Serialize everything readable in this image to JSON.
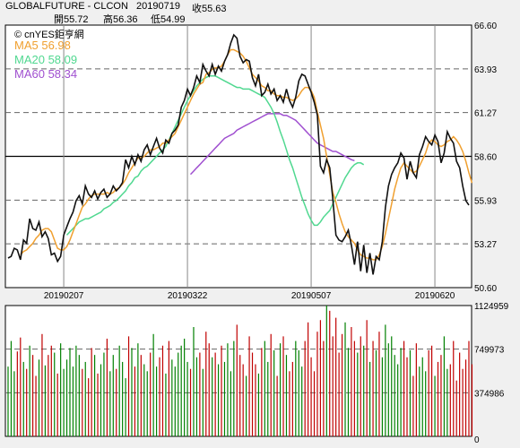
{
  "header": {
    "symbol": "GLOBALFUTURE - CLCON",
    "date": "20190719",
    "close_label": "收55.63",
    "open_label": "開55.72",
    "high_label": "高56.36",
    "low_label": "低54.99",
    "watermark": "© cnYES鉅亨網"
  },
  "ma_legend": [
    {
      "key": "ma5",
      "label": "MA5 56.98",
      "color": "#f0a030"
    },
    {
      "key": "ma20",
      "label": "MA20 58.09",
      "color": "#50d890"
    },
    {
      "key": "ma60",
      "label": "MA60 58.34",
      "color": "#a050d0"
    }
  ],
  "chart_data": [
    {
      "type": "line",
      "ylim": [
        50.6,
        66.6
      ],
      "yticks": [
        66.6,
        63.93,
        61.27,
        58.6,
        55.93,
        53.27,
        50.6
      ],
      "ytick_labels": [
        "66.60",
        "63.93",
        "61.27",
        "58.60",
        "55.93",
        "53.27",
        "50.60"
      ],
      "xticks": [
        18,
        58,
        98,
        138
      ],
      "xtick_labels": [
        "20190207",
        "20190322",
        "20190507",
        "20190620"
      ],
      "reference_line": 58.6,
      "grid": true,
      "close": [
        52.4,
        52.5,
        53.0,
        52.9,
        52.3,
        53.5,
        53.3,
        54.8,
        54.2,
        54.1,
        54.6,
        53.7,
        54.0,
        53.6,
        52.6,
        52.7,
        52.2,
        52.5,
        53.8,
        54.3,
        54.8,
        55.2,
        55.9,
        56.2,
        55.7,
        56.8,
        56.3,
        56.1,
        56.5,
        56.0,
        56.4,
        56.6,
        56.1,
        56.3,
        56.8,
        56.5,
        56.7,
        57.0,
        58.4,
        57.9,
        58.6,
        58.1,
        58.7,
        58.3,
        59.0,
        59.3,
        58.7,
        59.2,
        59.7,
        59.1,
        58.8,
        59.6,
        59.4,
        60.0,
        60.2,
        60.5,
        61.6,
        62.0,
        62.7,
        62.3,
        62.8,
        63.5,
        63.1,
        64.2,
        63.8,
        63.5,
        64.2,
        63.6,
        64.1,
        63.8,
        64.4,
        64.8,
        65.5,
        66.0,
        65.8,
        64.7,
        64.3,
        64.5,
        64.4,
        63.4,
        62.9,
        63.6,
        62.3,
        62.5,
        63.0,
        62.4,
        62.7,
        62.0,
        62.3,
        61.9,
        62.7,
        62.0,
        61.6,
        62.2,
        63.2,
        63.6,
        63.5,
        63.0,
        62.5,
        61.9,
        61.1,
        58.0,
        57.6,
        58.4,
        57.9,
        56.0,
        53.8,
        53.5,
        53.4,
        53.7,
        54.1,
        53.2,
        52.0,
        53.4,
        51.6,
        53.2,
        51.5,
        52.7,
        51.4,
        52.5,
        52.3,
        53.4,
        55.5,
        56.8,
        57.5,
        57.9,
        58.2,
        58.8,
        58.5,
        57.2,
        58.3,
        57.6,
        57.3,
        58.7,
        59.2,
        59.8,
        59.5,
        59.3,
        59.9,
        59.5,
        58.2,
        58.8,
        60.1,
        59.7,
        59.4,
        58.3,
        57.9,
        56.8,
        55.9,
        55.63
      ],
      "series": [
        {
          "name": "MA5",
          "color": "#f0a030",
          "start": 4,
          "values": [
            52.6,
            52.8,
            52.9,
            53.1,
            53.3,
            53.6,
            53.8,
            54.1,
            54.2,
            54.2,
            54.0,
            53.5,
            53.0,
            52.9,
            52.9,
            53.1,
            53.5,
            54.0,
            54.5,
            55.0,
            55.5,
            55.7,
            56.0,
            56.2,
            56.3,
            56.3,
            56.3,
            56.3,
            56.4,
            56.3,
            56.4,
            56.6,
            56.7,
            56.9,
            57.2,
            57.6,
            57.9,
            58.2,
            58.5,
            58.5,
            58.6,
            58.8,
            59.0,
            59.0,
            59.1,
            59.2,
            59.4,
            59.4,
            59.6,
            59.8,
            60.0,
            60.4,
            60.8,
            61.2,
            61.6,
            62.0,
            62.4,
            62.7,
            63.0,
            63.1,
            63.6,
            63.7,
            63.9,
            64.0,
            64.0,
            64.1,
            64.4,
            64.8,
            65.1,
            65.1,
            65.0,
            64.9,
            64.7,
            64.4,
            64.0,
            63.6,
            63.4,
            63.2,
            62.9,
            62.8,
            62.6,
            62.6,
            62.4,
            62.3,
            62.3,
            62.2,
            62.2,
            62.1,
            62.0,
            62.1,
            62.3,
            62.6,
            62.8,
            62.8,
            62.6,
            62.2,
            61.3,
            60.5,
            59.7,
            58.6,
            57.5,
            56.4,
            55.8,
            55.1,
            54.5,
            54.0,
            53.7,
            53.5,
            53.3,
            52.9,
            52.6,
            52.5,
            52.4,
            52.4,
            52.3,
            52.3,
            52.6,
            53.1,
            53.9,
            54.8,
            55.7,
            56.6,
            57.3,
            57.9,
            58.2,
            58.0,
            57.8,
            57.6,
            57.7,
            58.0,
            58.4,
            58.8,
            59.4,
            59.6,
            59.5,
            59.3,
            59.2,
            59.3,
            59.5,
            59.6,
            59.8,
            59.6,
            59.3,
            58.9,
            58.3,
            57.6,
            56.98
          ]
        },
        {
          "name": "MA20",
          "color": "#50d890",
          "start": 19,
          "values": [
            53.8,
            54.0,
            54.2,
            54.4,
            54.6,
            54.7,
            54.8,
            54.8,
            54.9,
            55.0,
            55.1,
            55.2,
            55.4,
            55.5,
            55.6,
            55.8,
            55.9,
            56.1,
            56.3,
            56.5,
            56.8,
            57.0,
            57.3,
            57.4,
            57.7,
            57.9,
            58.0,
            58.2,
            58.4,
            58.6,
            58.8,
            59.0,
            59.2,
            59.6,
            60.0,
            60.4,
            60.8,
            61.2,
            61.6,
            62.0,
            62.3,
            62.6,
            62.9,
            63.1,
            63.3,
            63.4,
            63.5,
            63.5,
            63.5,
            63.4,
            63.3,
            63.2,
            63.1,
            63.0,
            62.9,
            62.8,
            62.8,
            62.7,
            62.7,
            62.7,
            62.6,
            62.5,
            62.4,
            62.3,
            62.2,
            61.9,
            61.6,
            61.2,
            60.7,
            60.1,
            59.6,
            59.0,
            58.4,
            57.9,
            57.3,
            56.7,
            56.1,
            55.6,
            55.1,
            54.7,
            54.4,
            54.4,
            54.6,
            54.9,
            55.1,
            55.3,
            55.7,
            56.1,
            56.5,
            56.9,
            57.3,
            57.6,
            57.9,
            58.1,
            58.2,
            58.2,
            58.09
          ]
        },
        {
          "name": "MA60",
          "color": "#a050d0",
          "start": 59,
          "values": [
            57.5,
            57.7,
            57.9,
            58.1,
            58.3,
            58.5,
            58.7,
            58.9,
            59.1,
            59.3,
            59.5,
            59.7,
            59.8,
            59.9,
            60.0,
            60.2,
            60.3,
            60.4,
            60.5,
            60.6,
            60.7,
            60.8,
            60.9,
            61.0,
            61.1,
            61.2,
            61.2,
            61.2,
            61.2,
            61.2,
            61.1,
            61.1,
            61.0,
            60.9,
            60.8,
            60.6,
            60.4,
            60.2,
            60.0,
            59.8,
            59.6,
            59.4,
            59.3,
            59.2,
            59.1,
            59.0,
            58.9,
            58.9,
            58.8,
            58.7,
            58.6,
            58.5,
            58.4,
            58.34
          ]
        }
      ]
    },
    {
      "type": "bar",
      "ylim": [
        0,
        1124959
      ],
      "yticks": [
        0,
        374986,
        749973,
        1124959
      ],
      "ytick_labels": [
        "0",
        "374986",
        "749973",
        "1124959"
      ],
      "grid": true,
      "up_color": "#008000",
      "down_color": "#c00000",
      "volume": [
        600000,
        820000,
        560000,
        730000,
        850000,
        640000,
        580000,
        780000,
        700000,
        520000,
        660000,
        880000,
        610000,
        700000,
        780000,
        720000,
        540000,
        800000,
        580000,
        660000,
        760000,
        600000,
        780000,
        700000,
        580000,
        640000,
        500000,
        760000,
        700000,
        540000,
        620000,
        720000,
        840000,
        560000,
        700000,
        580000,
        780000,
        640000,
        500000,
        860000,
        760000,
        600000,
        800000,
        700000,
        620000,
        560000,
        720000,
        880000,
        600000,
        680000,
        780000,
        540000,
        820000,
        660000,
        600000,
        720000,
        780000,
        840000,
        640000,
        580000,
        940000,
        680000,
        720000,
        580000,
        900000,
        800000,
        680000,
        720000,
        620000,
        780000,
        640000,
        800000,
        560000,
        820000,
        960000,
        700000,
        620000,
        520000,
        860000,
        720000,
        620000,
        540000,
        760000,
        820000,
        640000,
        880000,
        740000,
        520000,
        800000,
        860000,
        700000,
        560000,
        640000,
        820000,
        740000,
        600000,
        820000,
        980000,
        680000,
        560000,
        900000,
        1000000,
        820000,
        1124959,
        1080000,
        860000,
        1020000,
        720000,
        880000,
        980000,
        760000,
        940000,
        820000,
        720000,
        860000,
        780000,
        1000000,
        640000,
        820000,
        740000,
        900000,
        680000,
        960000,
        800000,
        860000,
        700000,
        620000,
        760000,
        820000,
        680000,
        740000,
        520000,
        800000,
        600000,
        680000,
        560000,
        740000,
        780000,
        520000,
        640000,
        700000,
        860000,
        580000,
        620000,
        820000,
        480000,
        720000,
        580000,
        660000,
        820000,
        620000
      ]
    }
  ]
}
